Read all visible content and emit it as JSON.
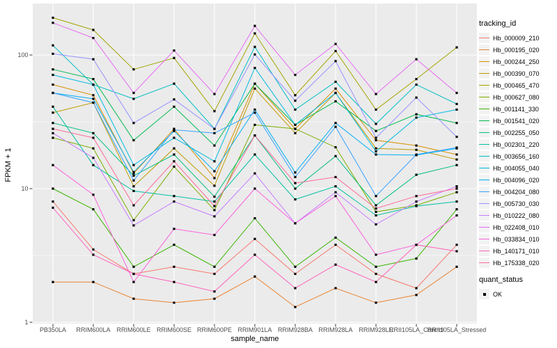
{
  "panel": {
    "bg_color": "#EBEBEB",
    "grid_color": "#FFFFFF",
    "tick_color": "#333333",
    "tick_label_color": "#4D4D4D",
    "point_color": "#000000"
  },
  "chart_data": {
    "type": "line",
    "title": "",
    "xlabel": "sample_name",
    "ylabel": "FPKM + 1",
    "y_scale": "log10",
    "y_ticks": [
      1,
      10,
      100
    ],
    "y_minor_ticks": [
      3.1623,
      31.623
    ],
    "ylim": [
      0.98,
      240
    ],
    "legend_title": "tracking_id",
    "grid": true,
    "legend_position": "right",
    "categories": [
      "PB350LA",
      "RRIM600LA",
      "RRIM600LE",
      "RRIM600SE",
      "RRIM600PE",
      "RRIM901LA",
      "RRIM928BA",
      "RRIM928LA",
      "RRIM928LE",
      "RRII105LA_Control",
      "RRII105LA_Stressed"
    ],
    "series": [
      {
        "name": "Hb_000009_210",
        "color": "#F8766D",
        "values": [
          8.0,
          3.5,
          2.3,
          2.6,
          2.3,
          4.2,
          2.3,
          3.8,
          2.3,
          1.8,
          3.8
        ]
      },
      {
        "name": "Hb_000195_020",
        "color": "#EA8331",
        "values": [
          2.0,
          2.0,
          1.5,
          1.4,
          1.5,
          2.2,
          1.3,
          1.8,
          1.4,
          1.6,
          2.6
        ]
      },
      {
        "name": "Hb_000244_250",
        "color": "#D89000",
        "values": [
          60,
          50,
          13,
          28,
          12,
          61,
          28,
          56,
          23,
          21,
          18
        ]
      },
      {
        "name": "Hb_000390_070",
        "color": "#C09B00",
        "values": [
          37,
          44,
          10.4,
          20,
          10.5,
          56,
          26,
          52,
          20,
          19.5,
          16.5
        ]
      },
      {
        "name": "Hb_000465_470",
        "color": "#A3A500",
        "values": [
          190,
          154,
          78,
          95,
          38,
          145,
          50,
          107,
          39,
          66,
          114
        ]
      },
      {
        "name": "Hb_000627_080",
        "color": "#7CAE00",
        "values": [
          24,
          20,
          5.8,
          14.6,
          6.9,
          30,
          28,
          20.4,
          6.7,
          7.5,
          9.4
        ]
      },
      {
        "name": "Hb_001141_330",
        "color": "#39B600",
        "values": [
          10,
          7.0,
          2.6,
          3.8,
          2.6,
          6.0,
          2.6,
          4.3,
          2.6,
          3.0,
          7.0
        ]
      },
      {
        "name": "Hb_001541_020",
        "color": "#00BB4E",
        "values": [
          78,
          66,
          23,
          41,
          21,
          61,
          30,
          45,
          27,
          36,
          31
        ]
      },
      {
        "name": "Hb_002255_050",
        "color": "#00BF7D",
        "values": [
          31,
          26,
          12.5,
          18,
          8.7,
          25,
          10,
          17.5,
          7.5,
          12.7,
          15
        ]
      },
      {
        "name": "Hb_002301_220",
        "color": "#00C1A3",
        "values": [
          41,
          15,
          9.6,
          8.8,
          8.0,
          18,
          8.3,
          10.4,
          6.3,
          7.4,
          8.0
        ]
      },
      {
        "name": "Hb_003656_160",
        "color": "#00BFC4",
        "values": [
          118,
          60,
          47,
          61,
          28,
          115,
          39,
          63,
          30.5,
          60,
          43
        ]
      },
      {
        "name": "Hb_004055_040",
        "color": "#00BAE0",
        "values": [
          71,
          60,
          15,
          24,
          16,
          80,
          30,
          52,
          19,
          34,
          39
        ]
      },
      {
        "name": "Hb_004096_020",
        "color": "#00B0F6",
        "values": [
          52,
          47,
          13.3,
          27,
          13.5,
          39,
          13.2,
          31,
          18,
          17.8,
          20
        ]
      },
      {
        "name": "Hb_004204_080",
        "color": "#35A2FF",
        "values": [
          52,
          44,
          11.5,
          27.5,
          26,
          37,
          12.2,
          29,
          8.8,
          18,
          20.3
        ]
      },
      {
        "name": "Hb_005730_030",
        "color": "#9590FF",
        "values": [
          102,
          93,
          31,
          46.5,
          28,
          101,
          45.5,
          90,
          24,
          48,
          24.4
        ]
      },
      {
        "name": "Hb_010222_080",
        "color": "#C77CFF",
        "values": [
          26,
          17,
          5.3,
          8.0,
          6.2,
          13,
          5.5,
          9.4,
          5.4,
          8.0,
          10.4
        ]
      },
      {
        "name": "Hb_022408_010",
        "color": "#E76BF3",
        "values": [
          174,
          134,
          52,
          108,
          51,
          165,
          71,
          121,
          51,
          93,
          52
        ]
      },
      {
        "name": "Hb_033834_010",
        "color": "#FA62DB",
        "values": [
          15,
          9.0,
          2.0,
          5.0,
          4.5,
          10,
          5.5,
          8.8,
          3.2,
          3.8,
          6.3
        ]
      },
      {
        "name": "Hb_140171_010",
        "color": "#FF62BC",
        "values": [
          7.2,
          3.2,
          2.3,
          2.0,
          1.7,
          3.2,
          1.8,
          2.7,
          2.0,
          3.8,
          3.4
        ]
      },
      {
        "name": "Hb_175338_020",
        "color": "#FF6A98",
        "values": [
          28,
          24,
          7.5,
          16,
          7.4,
          25,
          11,
          12.2,
          7.1,
          8.8,
          10
        ]
      }
    ],
    "quant_legend": {
      "title": "quant_status",
      "items": [
        {
          "label": "OK",
          "shape": "filled-square",
          "color": "#000000"
        }
      ]
    }
  }
}
